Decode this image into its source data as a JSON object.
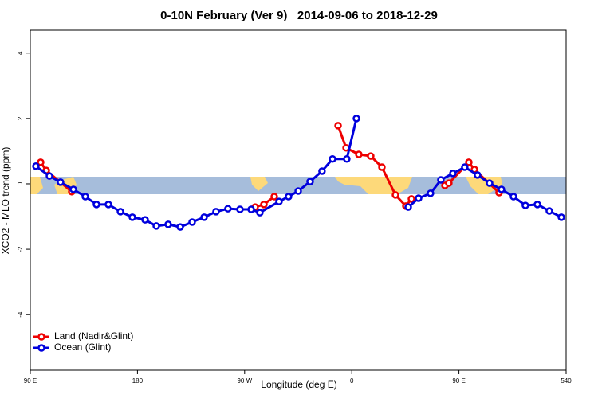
{
  "chart_data": {
    "type": "line",
    "title": "0-10N February (Ver 9)   2014-09-06 to 2018-12-29",
    "xlabel": "Longitude (deg E)",
    "ylabel": "XCO2 - MLO trend (ppm)",
    "xlim": [
      90,
      540
    ],
    "xticks": [
      {
        "value": 90,
        "label": "90 E"
      },
      180,
      {
        "value": 270,
        "label": "90 W"
      },
      {
        "value": 360,
        "label": "0"
      },
      {
        "value": 450,
        "label": "90 E"
      },
      540
    ],
    "ylim": [
      -5.7,
      4.7
    ],
    "yticks": [
      -4,
      -2,
      0,
      2,
      4
    ],
    "legend": "bottom-left",
    "series": [
      {
        "name": "Land (Nadir&Glint)",
        "color": "#ee0000",
        "x": [
          98.7,
          103.4,
          124.8,
          null,
          278.8,
          286.2,
          294.9,
          null,
          348.5,
          355.2,
          365.9,
          375.9,
          385.3,
          396.7,
          405.4,
          410.1,
          null,
          438.2,
          441.5,
          458.3,
          463,
          483.7
        ],
        "values": [
          0.66,
          0.41,
          -0.24,
          null,
          -0.71,
          -0.63,
          -0.39,
          null,
          1.78,
          1.1,
          0.9,
          0.85,
          0.51,
          -0.34,
          -0.68,
          -0.46,
          null,
          -0.05,
          0.02,
          0.66,
          0.44,
          -0.27
        ]
      },
      {
        "name": "Ocean (Glint)",
        "color": "#0000dd",
        "x": [
          94.7,
          106.1,
          115.4,
          126.2,
          136.2,
          145.6,
          155.6,
          165.7,
          175.7,
          186.4,
          195.8,
          205.8,
          215.9,
          225.9,
          236,
          246,
          256,
          266.1,
          275.5,
          282.8,
          298.9,
          306.9,
          315,
          325,
          335,
          343.8,
          355.8,
          363.9,
          null,
          407.4,
          416.1,
          426.1,
          434.8,
          444.9,
          454.9,
          465.6,
          475.7,
          485.7,
          495.8,
          505.8,
          515.9,
          525.9,
          536
        ],
        "values": [
          0.54,
          0.24,
          0.05,
          -0.17,
          -0.39,
          -0.63,
          -0.63,
          -0.85,
          -1.02,
          -1.1,
          -1.29,
          -1.24,
          -1.32,
          -1.17,
          -1.02,
          -0.85,
          -0.76,
          -0.78,
          -0.78,
          -0.88,
          -0.54,
          -0.39,
          -0.22,
          0.07,
          0.39,
          0.76,
          0.76,
          2.0,
          null,
          -0.71,
          -0.44,
          -0.29,
          0.12,
          0.32,
          0.51,
          0.27,
          0.02,
          -0.17,
          -0.39,
          -0.66,
          -0.63,
          -0.83,
          -1.02
        ]
      }
    ]
  }
}
